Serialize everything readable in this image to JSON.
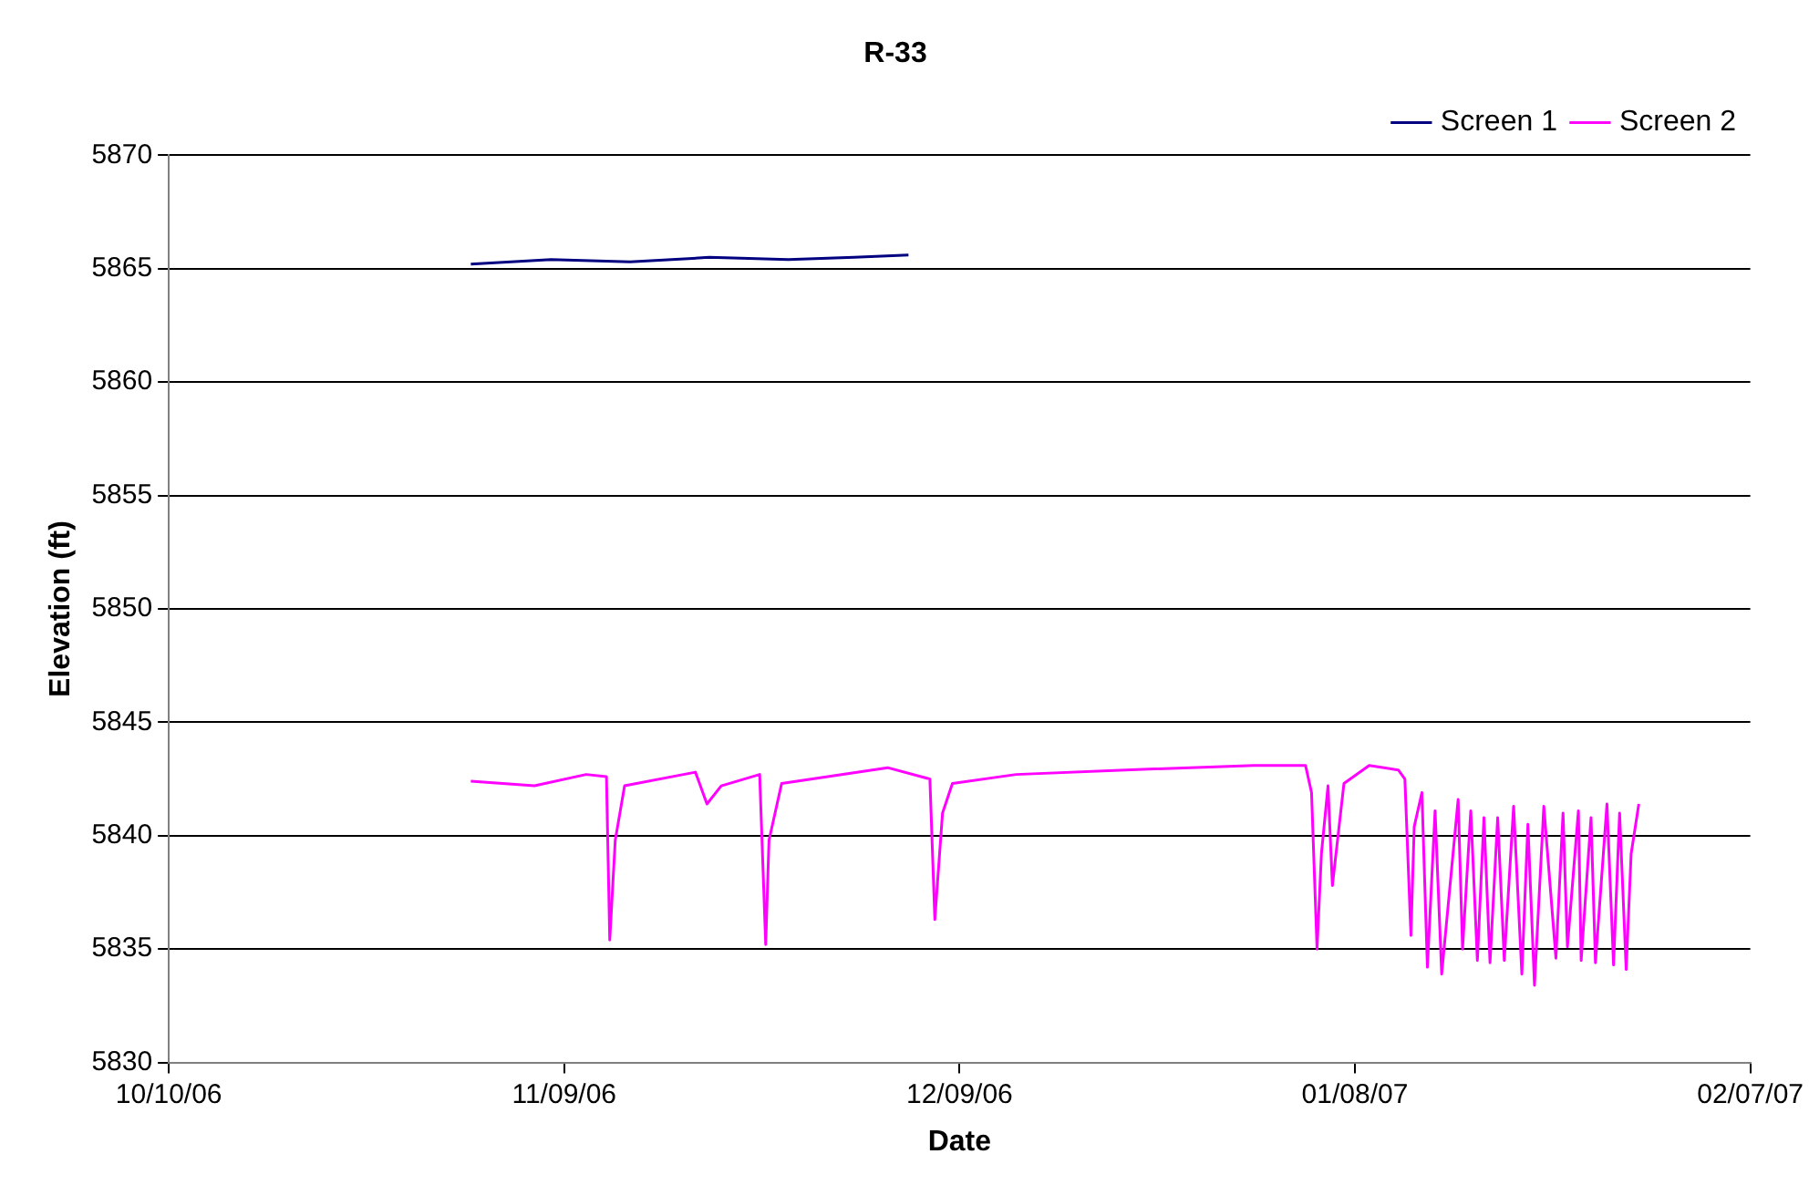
{
  "chart_data": {
    "type": "line",
    "title": "R-33",
    "xlabel": "Date",
    "ylabel": "Elevation (ft)",
    "xlim": [
      "2006-10-10",
      "2007-02-07"
    ],
    "xticks": [
      {
        "value": "2006-10-10",
        "label": "10/10/06"
      },
      {
        "value": "2006-11-09",
        "label": "11/09/06"
      },
      {
        "value": "2006-12-09",
        "label": "12/09/06"
      },
      {
        "value": "2007-01-08",
        "label": "01/08/07"
      },
      {
        "value": "2007-02-07",
        "label": "02/07/07"
      }
    ],
    "ylim": [
      5830,
      5870
    ],
    "yticks": [
      5830,
      5835,
      5840,
      5845,
      5850,
      5855,
      5860,
      5865,
      5870
    ],
    "grid": "y",
    "legend": "top right",
    "marker": "none",
    "line_style": "solid",
    "series": [
      {
        "name": "Screen 1",
        "color": "#000080",
        "x": [
          "2006-11-01T22:00",
          "2006-11-08T00:00",
          "2006-11-14T00:00",
          "2006-11-20T00:00",
          "2006-11-26T00:00",
          "2006-12-01T00:00",
          "2006-12-05T03:00"
        ],
        "values": [
          5865.2,
          5865.4,
          5865.3,
          5865.5,
          5865.4,
          5865.5,
          5865.6
        ]
      },
      {
        "name": "Screen 2",
        "color": "#ff00ff",
        "x": [
          "2006-11-01T22:00",
          "2006-11-06T18:00",
          "2006-11-10T16:00",
          "2006-11-12T05:00",
          "2006-11-12T11:00",
          "2006-11-12T21:00",
          "2006-11-13T14:00",
          "2006-11-18T23:00",
          "2006-11-19T20:00",
          "2006-11-20T22:00",
          "2006-11-23T20:00",
          "2006-11-24T07:00",
          "2006-11-24T13:00",
          "2006-11-25T12:00",
          "2006-12-03T13:00",
          "2006-12-06T18:00",
          "2006-12-07T03:00",
          "2006-12-07T17:00",
          "2006-12-08T11:00",
          "2006-12-13T07:00",
          "2006-12-21T14:00",
          "2006-12-31T08:00",
          "2007-01-04T06:00",
          "2007-01-04T17:00",
          "2007-01-05T03:00",
          "2007-01-05T11:00",
          "2007-01-05T23:00",
          "2007-01-06T07:00",
          "2007-01-07T04:00",
          "2007-01-09T02:00",
          "2007-01-11T07:00",
          "2007-01-11T19:00",
          "2007-01-12T06:00",
          "2007-01-12T12:00",
          "2007-01-13T02:00",
          "2007-01-13T12:00",
          "2007-01-14T02:00",
          "2007-01-14T14:00",
          "2007-01-15T20:00",
          "2007-01-16T04:00",
          "2007-01-16T19:00",
          "2007-01-17T07:00",
          "2007-01-17T19:00",
          "2007-01-18T06:00",
          "2007-01-18T20:00",
          "2007-01-19T08:00",
          "2007-01-20T01:00",
          "2007-01-20T16:00",
          "2007-01-21T03:00",
          "2007-01-21T15:00",
          "2007-01-22T08:00",
          "2007-01-23T06:00",
          "2007-01-23T19:00",
          "2007-01-24T03:00",
          "2007-01-24T23:00",
          "2007-01-25T04:00",
          "2007-01-25T22:00",
          "2007-01-26T06:00",
          "2007-01-27T03:00",
          "2007-01-27T15:00",
          "2007-01-28T02:00",
          "2007-01-28T14:00",
          "2007-01-28T23:00",
          "2007-01-29T13:00"
        ],
        "values": [
          5842.4,
          5842.2,
          5842.7,
          5842.6,
          5835.4,
          5839.8,
          5842.2,
          5842.8,
          5841.4,
          5842.2,
          5842.7,
          5835.2,
          5839.8,
          5842.3,
          5843.0,
          5842.5,
          5836.3,
          5841.0,
          5842.3,
          5842.7,
          5842.9,
          5843.1,
          5843.1,
          5841.9,
          5835.0,
          5839.2,
          5842.2,
          5837.8,
          5842.3,
          5843.1,
          5842.9,
          5842.5,
          5835.6,
          5840.4,
          5841.9,
          5834.2,
          5841.1,
          5833.9,
          5841.6,
          5835.0,
          5841.1,
          5834.5,
          5840.8,
          5834.4,
          5840.8,
          5834.5,
          5841.3,
          5833.9,
          5840.5,
          5833.4,
          5841.3,
          5834.6,
          5841.0,
          5835.1,
          5841.1,
          5834.5,
          5840.8,
          5834.4,
          5841.4,
          5834.3,
          5841.0,
          5834.1,
          5839.2,
          5841.4
        ]
      }
    ]
  }
}
